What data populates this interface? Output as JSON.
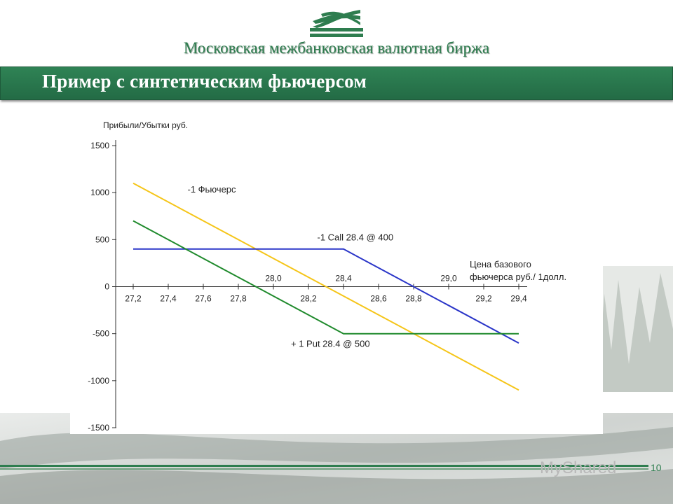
{
  "header": {
    "org_name": "Московская межбанковская валютная биржа",
    "slide_title": "Пример с синтетическим фьючерсом"
  },
  "footer": {
    "page_number": "10",
    "watermark": "MyShared"
  },
  "colors": {
    "accent_green": "#2e7d4f",
    "futures_line": "#f5c518",
    "call_line": "#2a35c8",
    "put_line": "#1f8a2c"
  },
  "chart_data": {
    "type": "line",
    "ylabel": "Прибыли/Убытки руб.",
    "xlabel_line1": "Цена базового",
    "xlabel_line2": "фьючерса руб./ 1долл.",
    "ylim": [
      -1500,
      1500
    ],
    "xlim": [
      27.2,
      29.4
    ],
    "y_ticks": [
      1500,
      1000,
      500,
      0,
      -500,
      -1000,
      -1500
    ],
    "x_ticks_below": [
      {
        "x": 27.2,
        "label": "27,2"
      },
      {
        "x": 27.4,
        "label": "27,4"
      },
      {
        "x": 27.6,
        "label": "27,6"
      },
      {
        "x": 27.8,
        "label": "27,8"
      },
      {
        "x": 28.2,
        "label": "28,2"
      },
      {
        "x": 28.6,
        "label": "28,6"
      },
      {
        "x": 28.8,
        "label": "28,8"
      },
      {
        "x": 29.2,
        "label": "29,2"
      },
      {
        "x": 29.4,
        "label": "29,4"
      }
    ],
    "x_ticks_above": [
      {
        "x": 28.0,
        "label": "28,0"
      },
      {
        "x": 28.4,
        "label": "28,4"
      },
      {
        "x": 29.0,
        "label": "29,0"
      }
    ],
    "series": [
      {
        "name": "-1 Фьючерс",
        "color": "#f5c518",
        "x": [
          27.2,
          29.4
        ],
        "y": [
          1100,
          -1100
        ]
      },
      {
        "name": "-1 Call 28.4 @ 400",
        "color": "#2a35c8",
        "x": [
          27.2,
          28.4,
          29.4
        ],
        "y": [
          400,
          400,
          -600
        ]
      },
      {
        "name": "+ 1 Put 28.4 @ 500",
        "color": "#1f8a2c",
        "x": [
          27.2,
          28.4,
          29.4
        ],
        "y": [
          700,
          -500,
          -500
        ]
      }
    ],
    "annotations": [
      {
        "text": "-1 Фьючерс",
        "x": 27.51,
        "y": 1000
      },
      {
        "text": "-1 Call 28.4 @ 400",
        "x": 28.25,
        "y": 490
      },
      {
        "text": "+ 1 Put 28.4 @ 500",
        "x": 28.1,
        "y": -640
      }
    ]
  }
}
